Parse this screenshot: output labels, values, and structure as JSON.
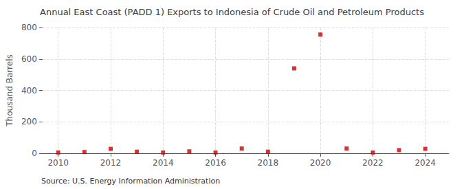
{
  "chart_data": {
    "type": "scatter",
    "title": "Annual East Coast (PADD 1) Exports to Indonesia of Crude Oil and Petroleum Products",
    "ylabel": "Thousand Barrels",
    "annotations": [
      "Source: U.S. Energy Information Administration"
    ],
    "x": [
      2010,
      2011,
      2012,
      2013,
      2014,
      2015,
      2016,
      2017,
      2018,
      2019,
      2020,
      2021,
      2022,
      2023,
      2024
    ],
    "values": [
      5,
      8,
      28,
      10,
      5,
      12,
      5,
      30,
      10,
      540,
      755,
      30,
      5,
      20,
      28
    ],
    "color": "#cc0000",
    "marker": "square",
    "xlim": [
      2009.4,
      2024.9
    ],
    "xticks": [
      2010,
      2012,
      2014,
      2016,
      2018,
      2020,
      2022,
      2024
    ],
    "ylim": [
      0,
      800
    ],
    "yticks": [
      0,
      200,
      400,
      600,
      800
    ],
    "grid": true
  }
}
